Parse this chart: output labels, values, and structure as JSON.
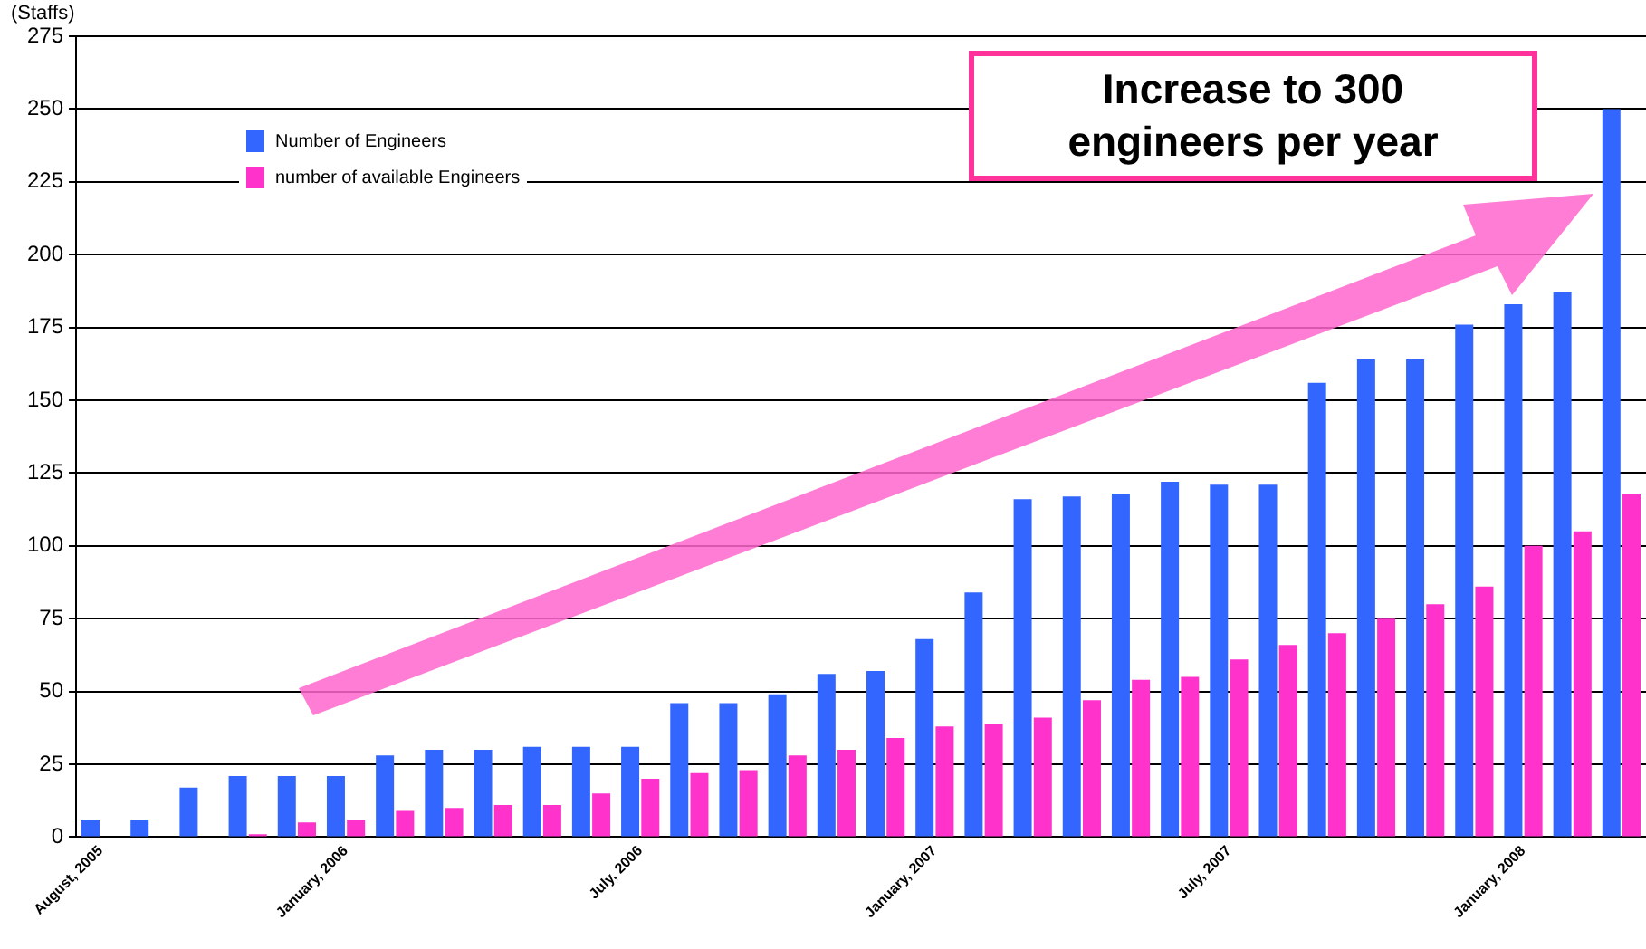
{
  "chart_data": {
    "type": "bar",
    "ylabel": "(Staffs)",
    "categories": [
      "August, 2005",
      null,
      null,
      null,
      null,
      "January, 2006",
      null,
      null,
      null,
      null,
      null,
      "July, 2006",
      null,
      null,
      null,
      null,
      null,
      "January, 2007",
      null,
      null,
      null,
      null,
      null,
      "July, 2007",
      null,
      null,
      null,
      null,
      null,
      "January, 2008",
      null,
      null
    ],
    "series": [
      {
        "name": "Number of Engineers",
        "color": "#3366ff",
        "values": [
          6,
          6,
          17,
          21,
          21,
          21,
          28,
          30,
          30,
          31,
          31,
          31,
          46,
          46,
          49,
          56,
          57,
          68,
          84,
          116,
          117,
          118,
          122,
          121,
          121,
          156,
          164,
          164,
          176,
          183,
          187,
          250
        ]
      },
      {
        "name": "number of available Engineers",
        "color": "#ff33cc",
        "values": [
          0,
          0,
          0,
          1,
          5,
          6,
          9,
          10,
          11,
          11,
          15,
          20,
          22,
          23,
          28,
          30,
          34,
          38,
          39,
          41,
          47,
          54,
          55,
          61,
          66,
          70,
          75,
          80,
          86,
          100,
          105,
          118
        ]
      }
    ],
    "ylim": [
      0,
      275
    ],
    "yticks": [
      0,
      25,
      50,
      75,
      100,
      125,
      150,
      175,
      200,
      225,
      250,
      275
    ],
    "grid": "y",
    "legend": "top left",
    "annotations": [
      "Increase to 300 engineers per year"
    ]
  }
}
